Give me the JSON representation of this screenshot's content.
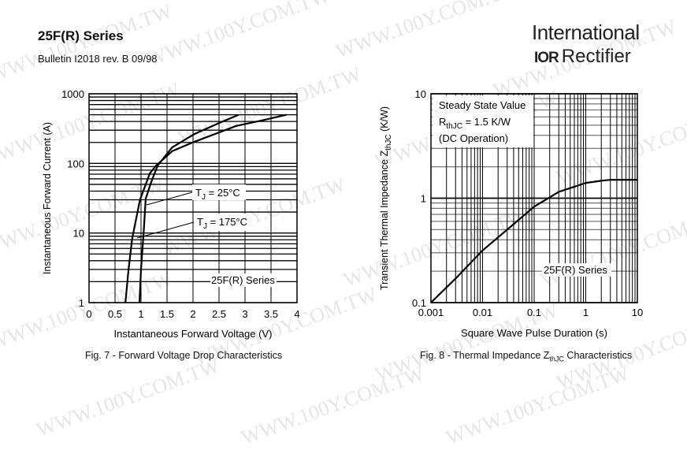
{
  "header": {
    "title": "25F(R) Series",
    "bulletin": "Bulletin I2018  rev. B  09/98",
    "logo_line1": "International",
    "logo_mark": "IOR",
    "logo_line2": "Rectifier"
  },
  "watermark": "WWW.100Y.COM.TW",
  "chart_data": [
    {
      "type": "line",
      "title": "Fig. 7 - Forward Voltage Drop Characteristics",
      "xlabel": "Instantaneous Forward Voltage (V)",
      "ylabel": "Instantaneous Forward Current (A)",
      "xlim": [
        0,
        4
      ],
      "ylim": [
        1,
        1000
      ],
      "yscale": "log",
      "xticks": [
        "0",
        "0.5",
        "1",
        "1.5",
        "2",
        "2.5",
        "3",
        "3.5",
        "4"
      ],
      "yticks": [
        "1",
        "10",
        "100",
        "1000"
      ],
      "grid": true,
      "annotation": "25F(R) Series",
      "series": [
        {
          "name": "TJ = 25°C",
          "label_main": "T",
          "label_sub": "J",
          "label_rest": " = 25°C",
          "x": [
            0.97,
            1.0,
            1.05,
            1.09,
            1.2,
            1.32,
            1.6,
            2.03,
            2.5,
            2.88
          ],
          "y": [
            1,
            3,
            10,
            31,
            55,
            93,
            170,
            265,
            380,
            500
          ]
        },
        {
          "name": "TJ = 175°C",
          "label_main": "T",
          "label_sub": "J",
          "label_rest": " = 175°C",
          "x": [
            0.7,
            0.76,
            0.83,
            0.98,
            1.17,
            1.29,
            1.6,
            2.03,
            2.83,
            3.3,
            3.8
          ],
          "y": [
            1,
            3,
            8.3,
            30,
            72,
            93,
            150,
            205,
            345,
            410,
            500
          ]
        }
      ]
    },
    {
      "type": "line",
      "title": "Fig. 8 - Thermal Impedance ZthJC Characteristics",
      "title_main": "Fig. 8 - Thermal Impedance Z",
      "title_sub": "thJC",
      "title_rest": " Characteristics",
      "xlabel": "Square Wave Pulse Duration (s)",
      "ylabel": "Transient Thermal Impedance ZthJC (K/W)",
      "ylabel_main": "Transient Thermal Impedance Z",
      "ylabel_sub": "thJC",
      "ylabel_rest": " (K/W)",
      "xscale": "log",
      "yscale": "log",
      "xlim": [
        0.001,
        10
      ],
      "ylim": [
        0.1,
        10
      ],
      "xticks": [
        "0.001",
        "0.01",
        "0.1",
        "1",
        "10"
      ],
      "yticks": [
        "0.1",
        "1",
        "10"
      ],
      "grid": true,
      "annotation": "25F(R) Series",
      "legend_box": {
        "line1": "Steady State Value",
        "line2_main": "R",
        "line2_sub": "thJC",
        "line2_rest": " = 1.5 K/W",
        "line3": "(DC Operation)"
      },
      "series": [
        {
          "name": "25F(R) Series",
          "x": [
            0.001,
            0.003,
            0.01,
            0.03,
            0.1,
            0.3,
            1,
            2,
            3,
            5,
            10
          ],
          "y": [
            0.1,
            0.17,
            0.316,
            0.5,
            0.83,
            1.15,
            1.4,
            1.47,
            1.5,
            1.5,
            1.5
          ]
        }
      ]
    }
  ]
}
